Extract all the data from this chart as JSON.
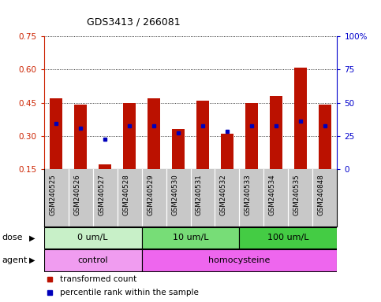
{
  "title": "GDS3413 / 266081",
  "samples": [
    "GSM240525",
    "GSM240526",
    "GSM240527",
    "GSM240528",
    "GSM240529",
    "GSM240530",
    "GSM240531",
    "GSM240532",
    "GSM240533",
    "GSM240534",
    "GSM240535",
    "GSM240848"
  ],
  "transformed_count": [
    0.47,
    0.44,
    0.17,
    0.45,
    0.47,
    0.33,
    0.46,
    0.31,
    0.45,
    0.48,
    0.61,
    0.44
  ],
  "percentile_rank_left": [
    0.355,
    0.335,
    0.285,
    0.345,
    0.345,
    0.315,
    0.345,
    0.32,
    0.345,
    0.345,
    0.365,
    0.345
  ],
  "ylim_left": [
    0.15,
    0.75
  ],
  "ylim_right": [
    0,
    100
  ],
  "yticks_left": [
    0.15,
    0.3,
    0.45,
    0.6,
    0.75
  ],
  "yticks_right": [
    0,
    25,
    50,
    75,
    100
  ],
  "ytick_labels_left": [
    "0.15",
    "0.30",
    "0.45",
    "0.60",
    "0.75"
  ],
  "ytick_labels_right": [
    "0",
    "25",
    "50",
    "75",
    "100%"
  ],
  "dose_groups": [
    {
      "label": "0 um/L",
      "start": 0,
      "end": 4,
      "color": "#c8f0c8"
    },
    {
      "label": "10 um/L",
      "start": 4,
      "end": 8,
      "color": "#77dd77"
    },
    {
      "label": "100 um/L",
      "start": 8,
      "end": 12,
      "color": "#44cc44"
    }
  ],
  "agent_groups": [
    {
      "label": "control",
      "start": 0,
      "end": 4,
      "color": "#f09cf0"
    },
    {
      "label": "homocysteine",
      "start": 4,
      "end": 12,
      "color": "#ee66ee"
    }
  ],
  "bar_color": "#bb1100",
  "dot_color": "#0000bb",
  "grid_color": "#000000",
  "xtick_bg": "#c8c8c8",
  "label_red": "transformed count",
  "label_blue": "percentile rank within the sample",
  "left_axis_color": "#cc2200",
  "right_axis_color": "#0000cc",
  "dose_label": "dose",
  "agent_label": "agent"
}
